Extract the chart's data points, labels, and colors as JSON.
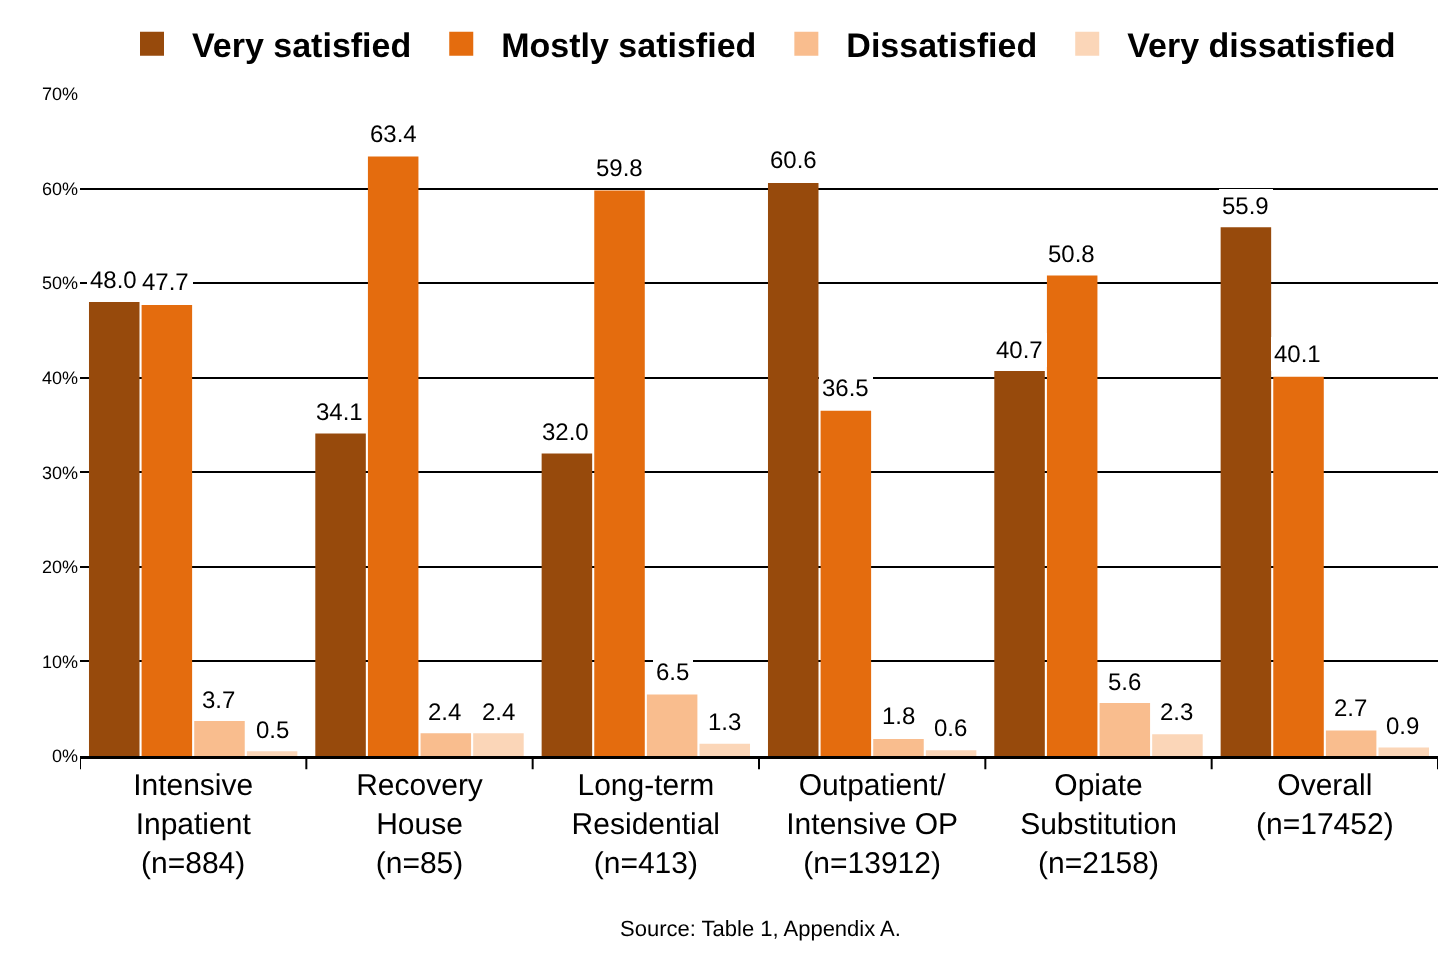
{
  "chart_data": {
    "type": "bar",
    "categories": [
      "Intensive\nInpatient\n(n=884)",
      "Recovery\nHouse\n(n=85)",
      "Long-term\nResidential\n(n=413)",
      "Outpatient/\nIntensive OP\n(n=13912)",
      "Opiate\nSubstitution\n(n=2158)",
      "Overall\n(n=17452)"
    ],
    "series": [
      {
        "name": "Very satisfied",
        "color": "#974a0c",
        "values": [
          48.0,
          34.1,
          32.0,
          60.6,
          40.7,
          55.9
        ],
        "value_labels": [
          "48.0",
          "34.1",
          "32.0",
          "60.6",
          "40.7",
          "55.9"
        ]
      },
      {
        "name": "Mostly satisfied",
        "color": "#e46c0e",
        "values": [
          47.7,
          63.4,
          59.8,
          36.5,
          50.8,
          40.1
        ],
        "value_labels": [
          "47.7",
          "63.4",
          "59.8",
          "36.5",
          "50.8",
          "40.1"
        ]
      },
      {
        "name": "Dissatisfied",
        "color": "#f9bd8e",
        "values": [
          3.7,
          2.4,
          6.5,
          1.8,
          5.6,
          2.7
        ],
        "value_labels": [
          "3.7",
          "2.4",
          "6.5",
          "1.8",
          "5.6",
          "2.7"
        ]
      },
      {
        "name": "Very dissatisfied",
        "color": "#fbd6b8",
        "values": [
          0.5,
          2.4,
          1.3,
          0.6,
          2.3,
          0.9
        ],
        "value_labels": [
          "0.5",
          "2.4",
          "1.3",
          "0.6",
          "2.3",
          "0.9"
        ]
      }
    ],
    "ylim": [
      0,
      70
    ],
    "yticks": [
      {
        "value": 0,
        "label": "0%"
      },
      {
        "value": 10,
        "label": "10%"
      },
      {
        "value": 20,
        "label": "20%"
      },
      {
        "value": 30,
        "label": "30%"
      },
      {
        "value": 40,
        "label": "40%"
      },
      {
        "value": 50,
        "label": "50%"
      },
      {
        "value": 60,
        "label": "60%"
      },
      {
        "value": 70,
        "label": "70%"
      }
    ],
    "grid": "y",
    "legend": "top",
    "annotations": [
      "Source: Table 1, Appendix A."
    ]
  }
}
